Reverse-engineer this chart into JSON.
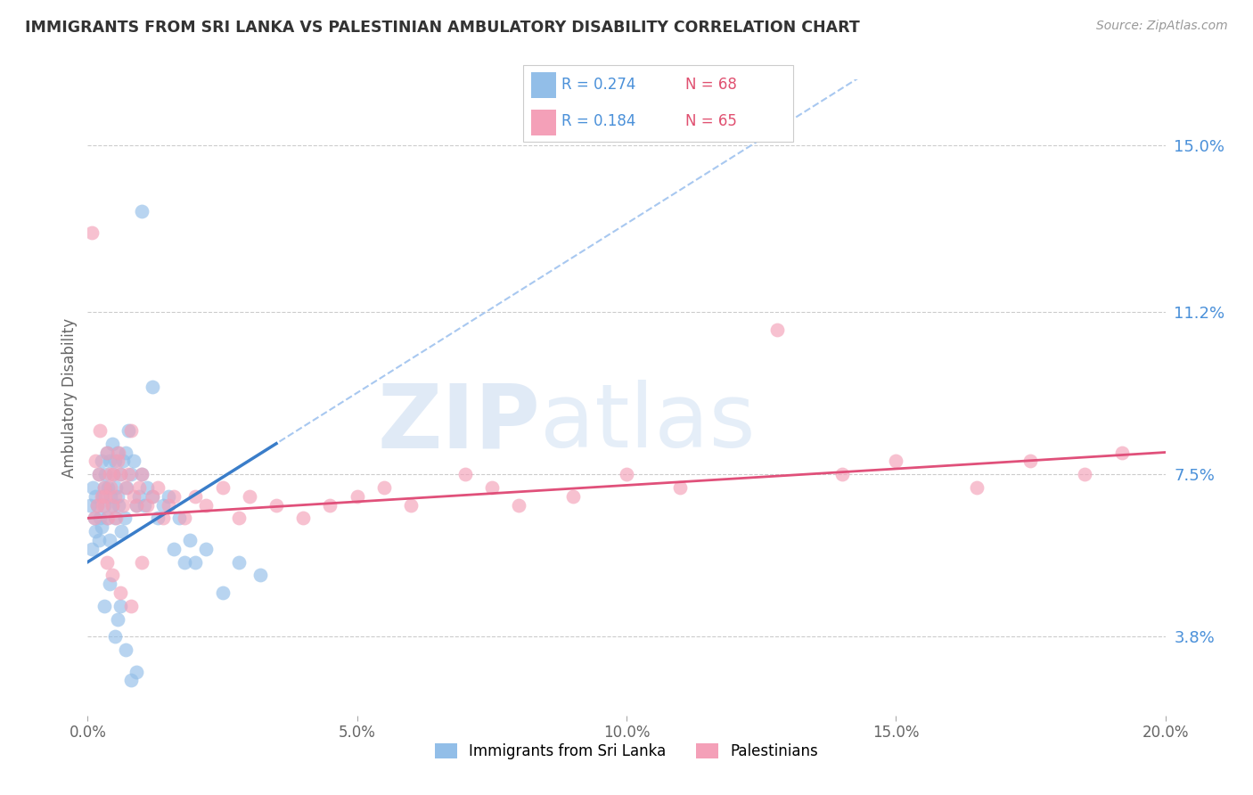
{
  "title": "IMMIGRANTS FROM SRI LANKA VS PALESTINIAN AMBULATORY DISABILITY CORRELATION CHART",
  "source": "Source: ZipAtlas.com",
  "xlabel_vals": [
    0.0,
    5.0,
    10.0,
    15.0,
    20.0
  ],
  "ylabel_vals": [
    3.8,
    7.5,
    11.2,
    15.0
  ],
  "xlim": [
    0.0,
    20.0
  ],
  "ylim": [
    2.0,
    16.5
  ],
  "legend_labels": [
    "Immigrants from Sri Lanka",
    "Palestinians"
  ],
  "legend_r1": "R = 0.274",
  "legend_n1": "N = 68",
  "legend_r2": "R = 0.184",
  "legend_n2": "N = 65",
  "color_blue": "#92BEE8",
  "color_pink": "#F4A0B8",
  "trendline_blue": "#3A7DC9",
  "trendline_pink": "#E0507A",
  "trendline_dashed_color": "#A8C8F0",
  "ylabel": "Ambulatory Disability",
  "sl_trendline_x0": 0.0,
  "sl_trendline_y0": 5.5,
  "sl_trendline_x1": 3.5,
  "sl_trendline_y1": 8.2,
  "sl_solid_x_max": 3.5,
  "pal_trendline_x0": 0.0,
  "pal_trendline_y0": 6.5,
  "pal_trendline_x1": 20.0,
  "pal_trendline_y1": 8.0,
  "sri_lanka_x": [
    0.05,
    0.08,
    0.1,
    0.12,
    0.15,
    0.15,
    0.18,
    0.2,
    0.2,
    0.22,
    0.25,
    0.25,
    0.28,
    0.3,
    0.3,
    0.32,
    0.35,
    0.35,
    0.38,
    0.4,
    0.4,
    0.42,
    0.45,
    0.45,
    0.48,
    0.5,
    0.5,
    0.52,
    0.55,
    0.55,
    0.58,
    0.6,
    0.62,
    0.65,
    0.68,
    0.7,
    0.72,
    0.75,
    0.8,
    0.85,
    0.9,
    0.95,
    1.0,
    1.05,
    1.1,
    1.2,
    1.3,
    1.4,
    1.5,
    1.6,
    1.7,
    1.8,
    1.9,
    2.0,
    2.2,
    2.5,
    2.8,
    3.2,
    0.3,
    0.4,
    0.5,
    0.55,
    0.6,
    0.7,
    0.8,
    0.9,
    1.0,
    1.2
  ],
  "sri_lanka_y": [
    6.8,
    5.8,
    7.2,
    6.5,
    7.0,
    6.2,
    6.8,
    7.5,
    6.0,
    6.5,
    7.8,
    6.3,
    7.0,
    7.2,
    6.8,
    7.5,
    8.0,
    6.5,
    7.2,
    7.8,
    6.0,
    7.0,
    8.2,
    6.8,
    7.5,
    7.8,
    6.5,
    7.2,
    7.0,
    8.0,
    6.8,
    7.5,
    6.2,
    7.8,
    6.5,
    8.0,
    7.2,
    8.5,
    7.5,
    7.8,
    6.8,
    7.0,
    7.5,
    6.8,
    7.2,
    7.0,
    6.5,
    6.8,
    7.0,
    5.8,
    6.5,
    5.5,
    6.0,
    5.5,
    5.8,
    4.8,
    5.5,
    5.2,
    4.5,
    5.0,
    3.8,
    4.2,
    4.5,
    3.5,
    2.8,
    3.0,
    13.5,
    9.5
  ],
  "palestinians_x": [
    0.08,
    0.12,
    0.15,
    0.18,
    0.2,
    0.22,
    0.25,
    0.28,
    0.3,
    0.32,
    0.35,
    0.38,
    0.4,
    0.42,
    0.45,
    0.48,
    0.5,
    0.52,
    0.55,
    0.58,
    0.6,
    0.65,
    0.7,
    0.75,
    0.8,
    0.85,
    0.9,
    0.95,
    1.0,
    1.1,
    1.2,
    1.3,
    1.4,
    1.5,
    1.6,
    1.8,
    2.0,
    2.2,
    2.5,
    2.8,
    3.0,
    3.5,
    4.0,
    4.5,
    5.0,
    5.5,
    6.0,
    7.0,
    7.5,
    8.0,
    9.0,
    10.0,
    11.0,
    12.8,
    14.0,
    15.0,
    16.5,
    17.5,
    18.5,
    19.2,
    0.35,
    0.45,
    0.6,
    0.8,
    1.0
  ],
  "palestinians_y": [
    13.0,
    6.5,
    7.8,
    6.8,
    7.5,
    8.5,
    7.0,
    6.8,
    7.2,
    7.0,
    8.0,
    6.5,
    7.5,
    7.2,
    6.8,
    7.5,
    7.0,
    6.5,
    7.8,
    8.0,
    7.5,
    6.8,
    7.2,
    7.5,
    8.5,
    7.0,
    6.8,
    7.2,
    7.5,
    6.8,
    7.0,
    7.2,
    6.5,
    6.8,
    7.0,
    6.5,
    7.0,
    6.8,
    7.2,
    6.5,
    7.0,
    6.8,
    6.5,
    6.8,
    7.0,
    7.2,
    6.8,
    7.5,
    7.2,
    6.8,
    7.0,
    7.5,
    7.2,
    10.8,
    7.5,
    7.8,
    7.2,
    7.8,
    7.5,
    8.0,
    5.5,
    5.2,
    4.8,
    4.5,
    5.5
  ]
}
